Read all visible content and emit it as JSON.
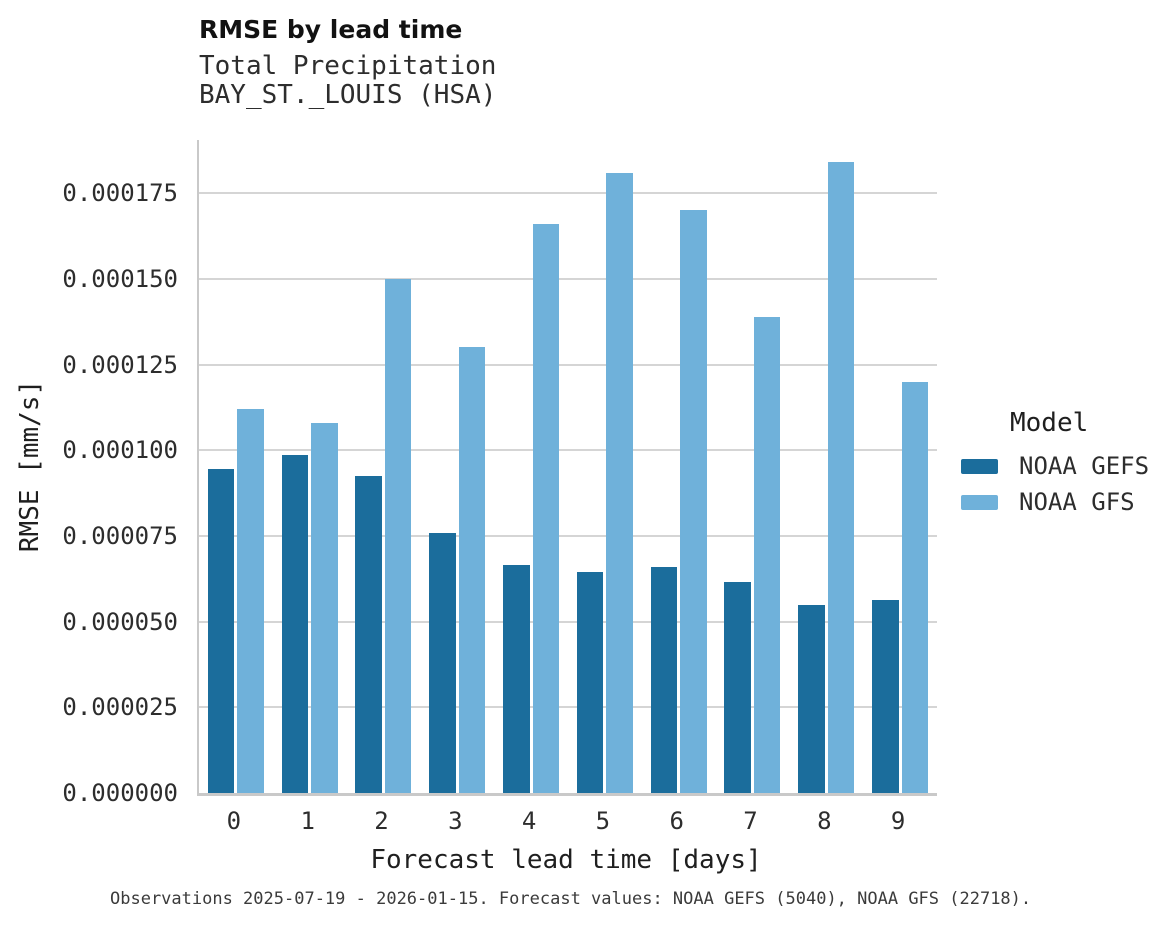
{
  "header": {
    "title": "RMSE by lead time",
    "subtitle_line1": "Total Precipitation",
    "subtitle_line2": "BAY_ST._LOUIS (HSA)"
  },
  "chart_data": {
    "type": "bar",
    "title": "RMSE by lead time",
    "subtitle": [
      "Total Precipitation",
      "BAY_ST._LOUIS (HSA)"
    ],
    "categories": [
      "0",
      "1",
      "2",
      "3",
      "4",
      "5",
      "6",
      "7",
      "8",
      "9"
    ],
    "series": [
      {
        "name": "NOAA GEFS",
        "color": "#1b6d9c",
        "values": [
          9.46e-05,
          9.87e-05,
          9.26e-05,
          7.59e-05,
          6.66e-05,
          6.46e-05,
          6.59e-05,
          6.16e-05,
          5.5e-05,
          5.64e-05
        ]
      },
      {
        "name": "NOAA GFS",
        "color": "#6fb1da",
        "values": [
          0.000112,
          0.000108,
          0.00015,
          0.00013,
          0.000166,
          0.000181,
          0.00017,
          0.000139,
          0.000184,
          0.00012
        ]
      }
    ],
    "xlabel": "Forecast lead time [days]",
    "ylabel": "RMSE [mm/s]",
    "ylim": [
      0,
      0.0001905
    ],
    "yticks": [
      0,
      2.5e-05,
      5e-05,
      7.5e-05,
      0.0001,
      0.000125,
      0.00015,
      0.000175
    ],
    "ytick_labels": [
      "0.000000",
      "0.000025",
      "0.000050",
      "0.000075",
      "0.000100",
      "0.000125",
      "0.000150",
      "0.000175"
    ],
    "grid": true,
    "legend_title": "Model",
    "legend_position": "right"
  },
  "legend": {
    "title": "Model",
    "items": [
      {
        "label": "NOAA GEFS",
        "color": "#1b6d9c"
      },
      {
        "label": "NOAA GFS",
        "color": "#6fb1da"
      }
    ]
  },
  "caption": "Observations 2025-07-19 - 2026-01-15. Forecast values: NOAA GEFS (5040), NOAA GFS (22718)."
}
